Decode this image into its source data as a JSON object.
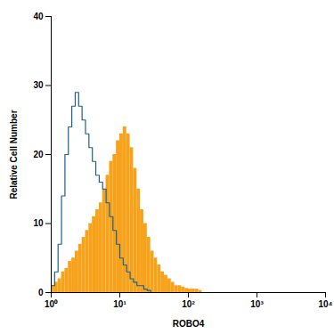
{
  "chart_data": {
    "type": "histogram",
    "x_label": "ROBO4",
    "y_label": "Relative Cell Number",
    "log": "x",
    "grid": false,
    "xlim": [
      1,
      10000
    ],
    "xticks": [
      {
        "value": 1,
        "label": "10⁰"
      },
      {
        "value": 10,
        "label": "10¹"
      },
      {
        "value": 100,
        "label": "10²"
      },
      {
        "value": 1000,
        "label": "10³"
      },
      {
        "value": 10000,
        "label": "10⁴"
      }
    ],
    "ylim": [
      0,
      40
    ],
    "yticks": [
      0,
      10,
      20,
      30,
      40
    ],
    "bins": [
      1,
      1.122,
      1.259,
      1.413,
      1.585,
      1.778,
      1.995,
      2.239,
      2.512,
      2.818,
      3.162,
      3.548,
      3.981,
      4.467,
      5.012,
      5.623,
      6.31,
      7.079,
      7.943,
      8.913,
      10,
      11.22,
      12.59,
      14.13,
      15.85,
      17.78,
      19.95,
      22.39,
      25.12,
      28.18,
      31.62,
      35.48,
      39.81,
      44.67,
      50.12,
      56.23,
      63.1,
      70.79,
      79.43,
      89.13,
      100,
      112.2,
      125.9,
      141.3,
      158.5,
      177.8
    ],
    "series": [
      {
        "type": "bar",
        "color": "#f7a21b",
        "values": [
          1,
          1.5,
          2,
          3,
          3.5,
          4.5,
          5,
          6,
          7,
          8,
          9,
          10,
          11,
          12,
          13,
          15,
          17,
          19,
          20,
          22,
          23,
          24,
          23,
          21,
          18,
          15,
          12,
          10,
          8,
          6,
          5,
          4,
          3,
          2.5,
          2,
          1.5,
          1,
          1,
          0.8,
          0.6,
          0.5,
          0.5,
          0.5,
          0.3,
          0
        ]
      },
      {
        "type": "line",
        "color": "#1f5f8b",
        "values": [
          1,
          3,
          7,
          14,
          20,
          24,
          27,
          29,
          27,
          25,
          23,
          21,
          19,
          17,
          16,
          15,
          13,
          11,
          9,
          7,
          5,
          4,
          3,
          2,
          1.5,
          1,
          1,
          0.5,
          0.3,
          0,
          0,
          0,
          0,
          0,
          0,
          0,
          0,
          0,
          0,
          0,
          0,
          0,
          0,
          0,
          0
        ]
      }
    ]
  }
}
